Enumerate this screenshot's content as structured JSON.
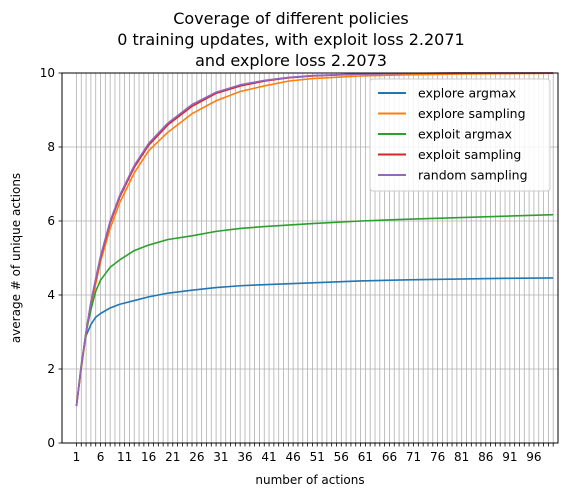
{
  "chart_data": {
    "type": "line",
    "title_lines": [
      "Coverage of different policies",
      "0 training updates, with exploit loss 2.2071",
      "and explore loss 2.2073"
    ],
    "xlabel": "number of actions",
    "ylabel": "average # of unique actions",
    "xlim": [
      -2,
      101
    ],
    "ylim": [
      0,
      10
    ],
    "x_ticks": [
      1,
      6,
      11,
      16,
      21,
      26,
      31,
      36,
      41,
      46,
      51,
      56,
      61,
      66,
      71,
      76,
      81,
      86,
      91,
      96
    ],
    "y_ticks": [
      0,
      2,
      4,
      6,
      8,
      10
    ],
    "grid": true,
    "legend_position": "top-right",
    "series": [
      {
        "name": "explore argmax",
        "color": "#1f77b4",
        "points": [
          [
            1,
            1.0
          ],
          [
            2,
            2.1
          ],
          [
            3,
            2.9
          ],
          [
            4,
            3.2
          ],
          [
            5,
            3.4
          ],
          [
            6,
            3.5
          ],
          [
            8,
            3.65
          ],
          [
            10,
            3.75
          ],
          [
            13,
            3.85
          ],
          [
            16,
            3.95
          ],
          [
            20,
            4.05
          ],
          [
            25,
            4.13
          ],
          [
            30,
            4.2
          ],
          [
            35,
            4.25
          ],
          [
            40,
            4.28
          ],
          [
            50,
            4.33
          ],
          [
            60,
            4.38
          ],
          [
            70,
            4.41
          ],
          [
            80,
            4.43
          ],
          [
            90,
            4.45
          ],
          [
            100,
            4.46
          ]
        ]
      },
      {
        "name": "explore sampling",
        "color": "#ff7f0e",
        "points": [
          [
            1,
            1.0
          ],
          [
            2,
            2.0
          ],
          [
            3,
            2.95
          ],
          [
            4,
            3.7
          ],
          [
            5,
            4.3
          ],
          [
            6,
            4.9
          ],
          [
            8,
            5.8
          ],
          [
            10,
            6.5
          ],
          [
            13,
            7.3
          ],
          [
            16,
            7.9
          ],
          [
            20,
            8.4
          ],
          [
            25,
            8.9
          ],
          [
            30,
            9.25
          ],
          [
            35,
            9.5
          ],
          [
            40,
            9.65
          ],
          [
            45,
            9.78
          ],
          [
            50,
            9.85
          ],
          [
            60,
            9.92
          ],
          [
            70,
            9.95
          ],
          [
            80,
            9.97
          ],
          [
            90,
            9.98
          ],
          [
            100,
            9.99
          ]
        ]
      },
      {
        "name": "exploit argmax",
        "color": "#2ca02c",
        "points": [
          [
            1,
            1.0
          ],
          [
            2,
            2.1
          ],
          [
            3,
            3.0
          ],
          [
            4,
            3.6
          ],
          [
            5,
            4.1
          ],
          [
            6,
            4.4
          ],
          [
            8,
            4.75
          ],
          [
            10,
            4.95
          ],
          [
            13,
            5.2
          ],
          [
            16,
            5.35
          ],
          [
            20,
            5.5
          ],
          [
            25,
            5.6
          ],
          [
            30,
            5.72
          ],
          [
            35,
            5.8
          ],
          [
            40,
            5.85
          ],
          [
            50,
            5.93
          ],
          [
            60,
            6.0
          ],
          [
            70,
            6.05
          ],
          [
            80,
            6.09
          ],
          [
            90,
            6.13
          ],
          [
            100,
            6.17
          ]
        ]
      },
      {
        "name": "exploit sampling",
        "color": "#d62728",
        "points": [
          [
            1,
            1.0
          ],
          [
            2,
            2.05
          ],
          [
            3,
            3.0
          ],
          [
            4,
            3.8
          ],
          [
            5,
            4.4
          ],
          [
            6,
            5.0
          ],
          [
            8,
            5.95
          ],
          [
            10,
            6.65
          ],
          [
            13,
            7.45
          ],
          [
            16,
            8.05
          ],
          [
            20,
            8.6
          ],
          [
            25,
            9.1
          ],
          [
            30,
            9.45
          ],
          [
            35,
            9.65
          ],
          [
            40,
            9.78
          ],
          [
            45,
            9.87
          ],
          [
            50,
            9.92
          ],
          [
            60,
            9.97
          ],
          [
            70,
            9.99
          ],
          [
            80,
            10.0
          ],
          [
            90,
            10.0
          ],
          [
            100,
            10.0
          ]
        ]
      },
      {
        "name": "random sampling",
        "color": "#9467bd",
        "points": [
          [
            1,
            1.0
          ],
          [
            2,
            2.05
          ],
          [
            3,
            3.0
          ],
          [
            4,
            3.8
          ],
          [
            5,
            4.45
          ],
          [
            6,
            5.05
          ],
          [
            8,
            6.0
          ],
          [
            10,
            6.7
          ],
          [
            13,
            7.5
          ],
          [
            16,
            8.1
          ],
          [
            20,
            8.65
          ],
          [
            25,
            9.15
          ],
          [
            30,
            9.48
          ],
          [
            35,
            9.68
          ],
          [
            40,
            9.8
          ],
          [
            45,
            9.88
          ],
          [
            50,
            9.93
          ],
          [
            60,
            9.97
          ],
          [
            70,
            9.99
          ],
          [
            80,
            10.0
          ],
          [
            90,
            10.0
          ],
          [
            100,
            10.0
          ]
        ]
      }
    ]
  }
}
